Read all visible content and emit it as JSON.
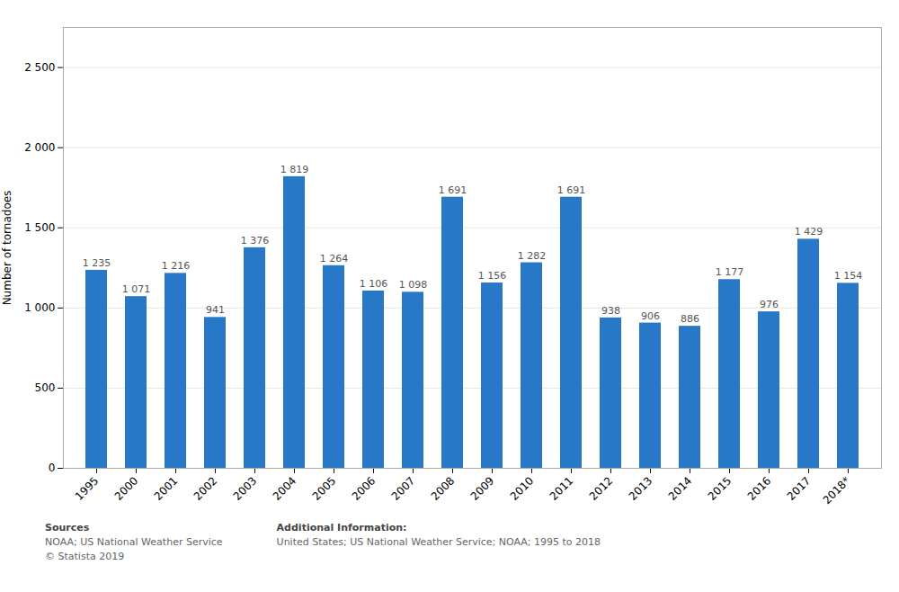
{
  "chart_data": {
    "type": "bar",
    "categories": [
      "1995",
      "2000",
      "2001",
      "2002",
      "2003",
      "2004",
      "2005",
      "2006",
      "2007",
      "2008",
      "2009",
      "2010",
      "2011",
      "2012",
      "2013",
      "2014",
      "2015",
      "2016",
      "2017",
      "2018*"
    ],
    "values": [
      1235,
      1071,
      1216,
      941,
      1376,
      1819,
      1264,
      1106,
      1098,
      1691,
      1156,
      1282,
      1691,
      938,
      906,
      886,
      1177,
      976,
      1429,
      1154
    ],
    "value_labels": [
      "1 235",
      "1 071",
      "1 216",
      "941",
      "1 376",
      "1 819",
      "1 264",
      "1 106",
      "1 098",
      "1 691",
      "1 156",
      "1 282",
      "1 691",
      "938",
      "906",
      "886",
      "1 177",
      "976",
      "1 429",
      "1 154"
    ],
    "data_labels": true,
    "color": "#2878C8",
    "ylabel": "Number of tornadoes",
    "ylim": [
      0,
      2750
    ],
    "yticks": [
      0,
      500,
      {
        "value": 1000,
        "label": "1 000"
      },
      {
        "value": 1500,
        "label": "1 500"
      },
      {
        "value": 2000,
        "label": "2 000"
      },
      {
        "value": 2500,
        "label": "2 500"
      }
    ],
    "grid": true,
    "annotations": [
      [
        "Sources",
        "NOAA; US National Weather Service",
        "© Statista 2019"
      ],
      [
        "Additional Information:",
        "United States; US National Weather Service; NOAA; 1995 to 2018"
      ]
    ]
  }
}
